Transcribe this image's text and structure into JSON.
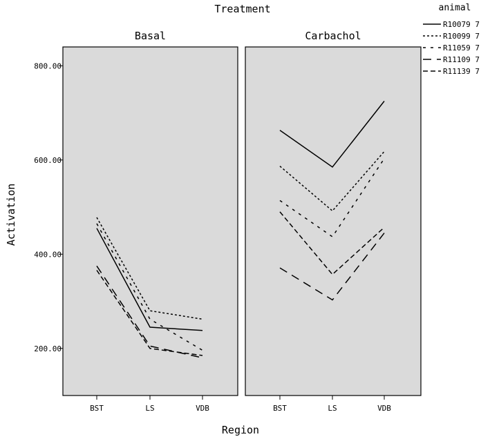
{
  "chart_data": {
    "type": "line",
    "title": "Treatment",
    "xlabel": "Region",
    "ylabel": "Activation",
    "categories": [
      "BST",
      "LS",
      "VDB"
    ],
    "ylim": [
      100,
      840
    ],
    "yticks": [
      200,
      400,
      600,
      800
    ],
    "ytick_labels": [
      "200.00",
      "400.00",
      "600.00",
      "800.00"
    ],
    "grid": false,
    "legend_title": "animal",
    "legend_position": "top-right",
    "panels": [
      {
        "name": "Basal",
        "series": [
          {
            "name": "R10079 7",
            "values": [
              455,
              245,
              238
            ]
          },
          {
            "name": "R10099 7",
            "values": [
              478,
              280,
              262
            ]
          },
          {
            "name": "R11059 7",
            "values": [
              465,
              262,
              196
            ]
          },
          {
            "name": "R11109 7",
            "values": [
              375,
              205,
              180
            ]
          },
          {
            "name": "R11139 7",
            "values": [
              366,
              200,
              185
            ]
          }
        ]
      },
      {
        "name": "Carbachol",
        "series": [
          {
            "name": "R10079 7",
            "values": [
              663,
              585,
              725
            ]
          },
          {
            "name": "R10099 7",
            "values": [
              587,
              492,
              618
            ]
          },
          {
            "name": "R11059 7",
            "values": [
              514,
              437,
              603
            ]
          },
          {
            "name": "R11109 7",
            "values": [
              371,
              303,
              445
            ]
          },
          {
            "name": "R11139 7",
            "values": [
              490,
              357,
              457
            ]
          }
        ]
      }
    ]
  }
}
